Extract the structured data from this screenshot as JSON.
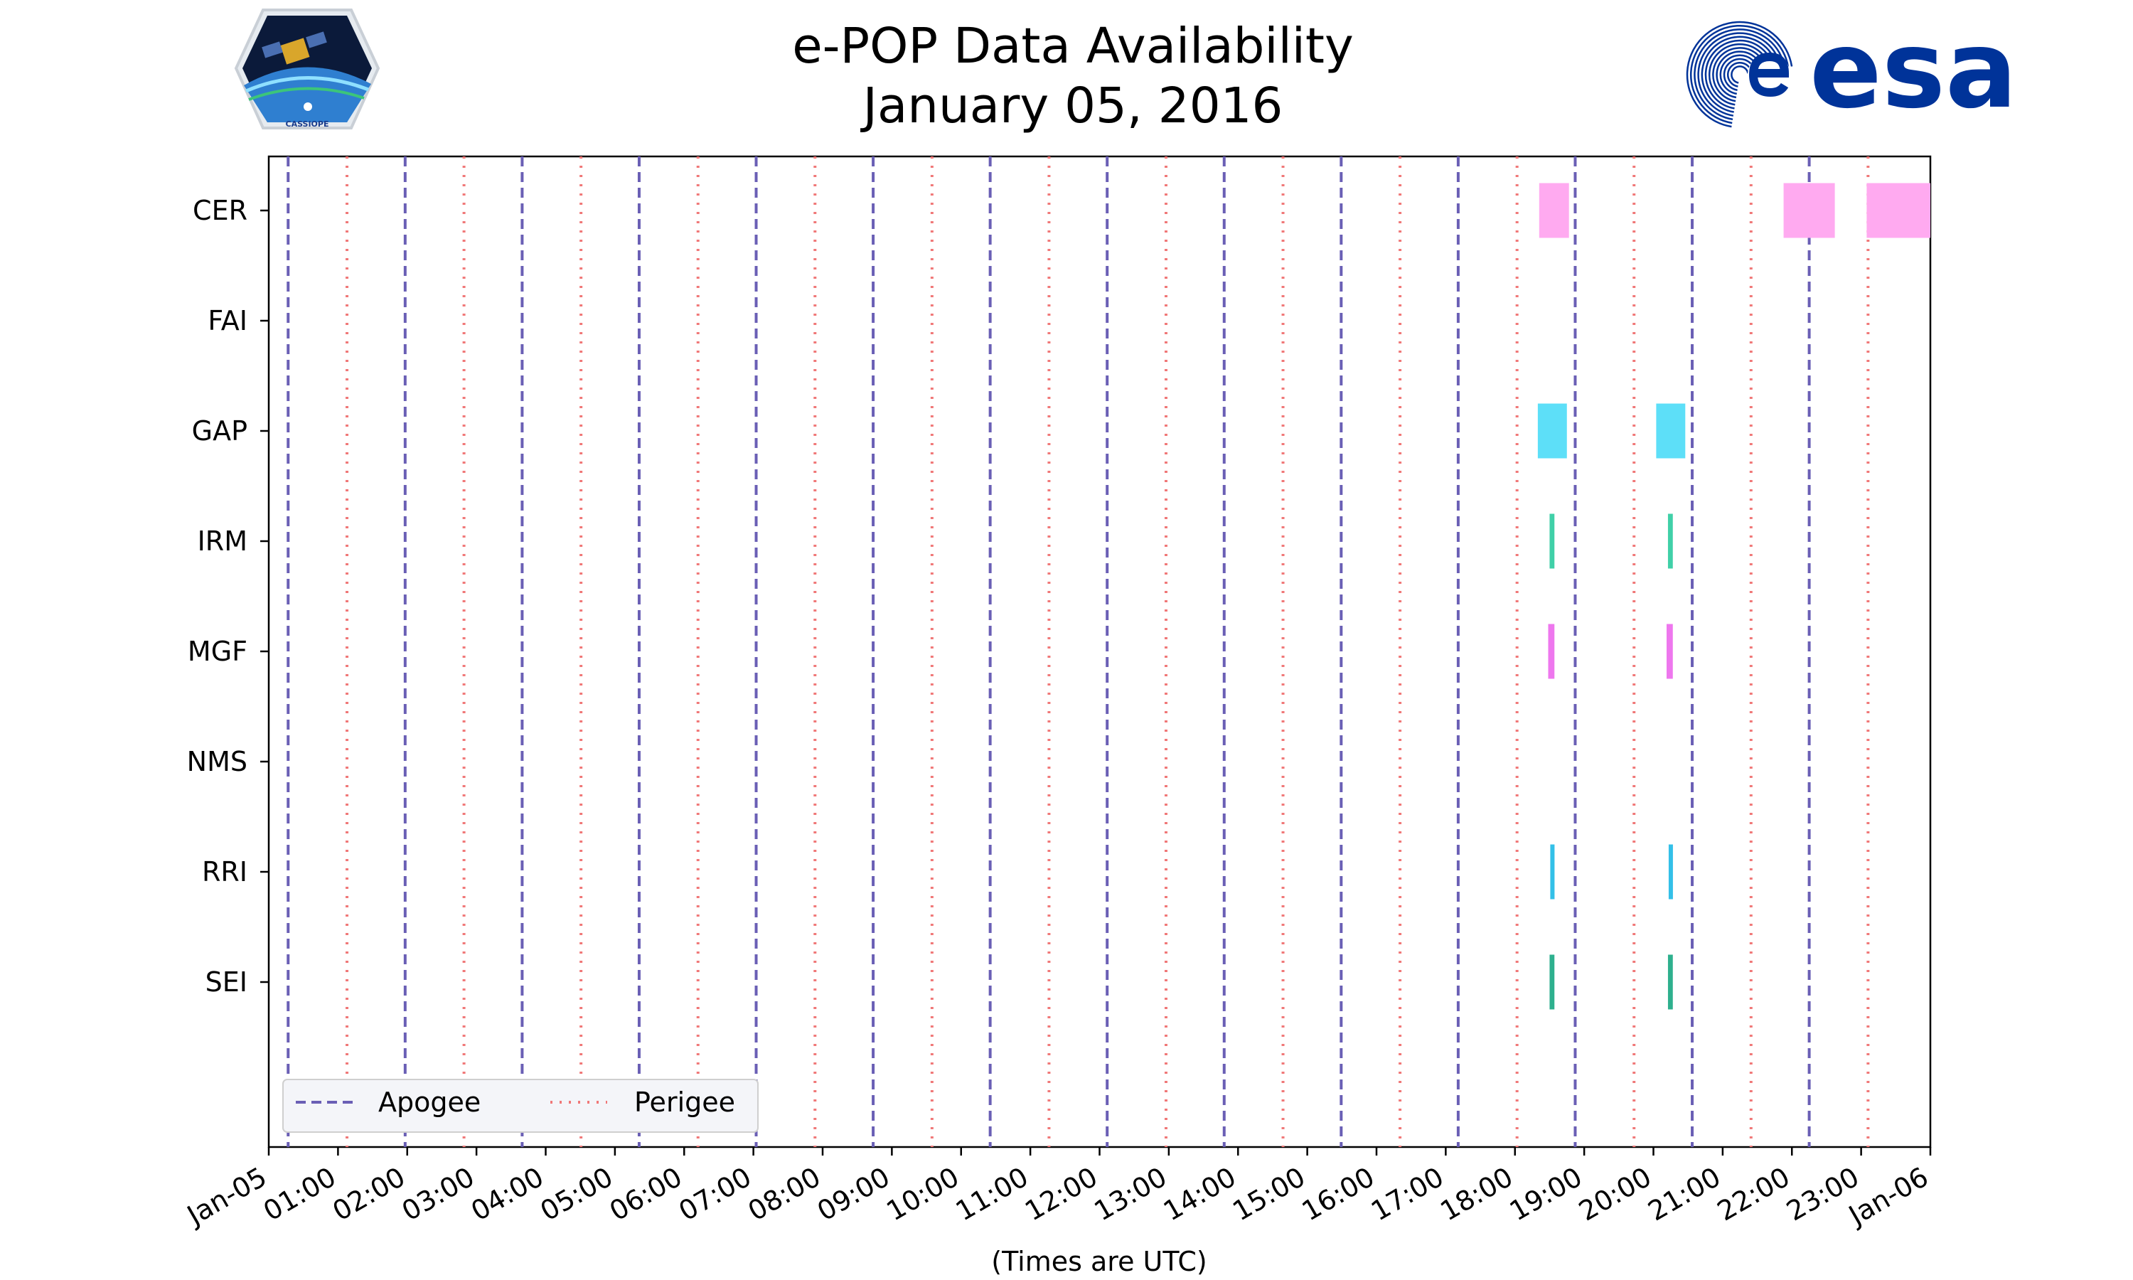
{
  "chart_data": {
    "type": "timeline",
    "title": [
      "e-POP Data Availability",
      "January 05, 2016"
    ],
    "xlabel": "(Times are UTC)",
    "xlim_hours": [
      0,
      24
    ],
    "x_tick_labels": [
      "Jan-05",
      "01:00",
      "02:00",
      "03:00",
      "04:00",
      "05:00",
      "06:00",
      "07:00",
      "08:00",
      "09:00",
      "10:00",
      "11:00",
      "12:00",
      "13:00",
      "14:00",
      "15:00",
      "16:00",
      "17:00",
      "18:00",
      "19:00",
      "20:00",
      "21:00",
      "22:00",
      "23:00",
      "Jan-06"
    ],
    "instruments": [
      "CER",
      "FAI",
      "GAP",
      "IRM",
      "MGF",
      "NMS",
      "RRI",
      "SEI"
    ],
    "apogee_hours": [
      0.28,
      1.97,
      3.66,
      5.35,
      7.04,
      8.73,
      10.42,
      12.11,
      13.8,
      15.49,
      17.18,
      18.87,
      20.56,
      22.25
    ],
    "perigee_hours": [
      1.13,
      2.82,
      4.51,
      6.2,
      7.89,
      9.58,
      11.27,
      12.96,
      14.65,
      16.34,
      18.03,
      19.72,
      21.41,
      23.1
    ],
    "availability": [
      {
        "instrument": "CER",
        "start": 18.35,
        "end": 18.78,
        "color": "#ffaaf0",
        "width": 0.5
      },
      {
        "instrument": "CER",
        "start": 21.88,
        "end": 22.62,
        "color": "#ffaaf0",
        "width": 0.5
      },
      {
        "instrument": "CER",
        "start": 23.08,
        "end": 24.0,
        "color": "#ffaaf0",
        "width": 0.5
      },
      {
        "instrument": "GAP",
        "start": 18.33,
        "end": 18.75,
        "color": "#5ddff8",
        "width": 0.5
      },
      {
        "instrument": "GAP",
        "start": 20.04,
        "end": 20.46,
        "color": "#5ddff8",
        "width": 0.5
      },
      {
        "instrument": "IRM",
        "start": 18.5,
        "end": 18.57,
        "color": "#40d0a8",
        "width": 0.5
      },
      {
        "instrument": "IRM",
        "start": 20.21,
        "end": 20.28,
        "color": "#40d0a8",
        "width": 0.5
      },
      {
        "instrument": "MGF",
        "start": 18.48,
        "end": 18.57,
        "color": "#ee77ee",
        "width": 0.5
      },
      {
        "instrument": "MGF",
        "start": 20.19,
        "end": 20.28,
        "color": "#ee77ee",
        "width": 0.5
      },
      {
        "instrument": "RRI",
        "start": 18.51,
        "end": 18.57,
        "color": "#33c0e8",
        "width": 0.5
      },
      {
        "instrument": "RRI",
        "start": 20.22,
        "end": 20.28,
        "color": "#33c0e8",
        "width": 0.5
      },
      {
        "instrument": "SEI",
        "start": 18.5,
        "end": 18.57,
        "color": "#2eb08e",
        "width": 0.5
      },
      {
        "instrument": "SEI",
        "start": 20.21,
        "end": 20.28,
        "color": "#2eb08e",
        "width": 0.5
      }
    ],
    "legend": [
      {
        "label": "Apogee",
        "style": "dashed",
        "color": "#6a5fb5"
      },
      {
        "label": "Perigee",
        "style": "dotted",
        "color": "#f07878"
      }
    ],
    "legend_position": "lower-left"
  },
  "logos": {
    "left_caption": "CASSIOPE",
    "right_text": "esa"
  }
}
